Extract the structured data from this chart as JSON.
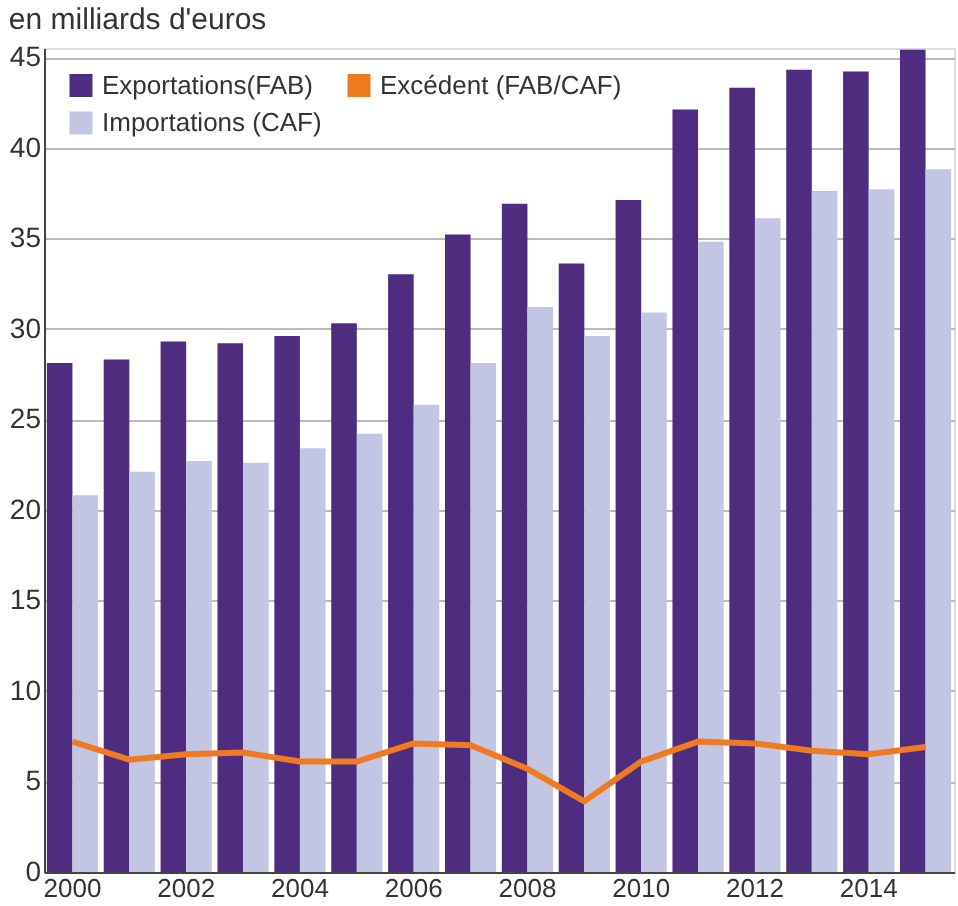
{
  "chart_data": {
    "type": "bar",
    "title": "en milliards d'euros",
    "categories": [
      "2000",
      null,
      "2002",
      null,
      "2004",
      null,
      "2006",
      null,
      "2008",
      null,
      "2010",
      null,
      "2012",
      null,
      "2014",
      null
    ],
    "series": [
      {
        "name": "Exportations(FAB)",
        "color": "#4e2d80",
        "values": [
          28.1,
          28.3,
          29.3,
          29.2,
          29.6,
          30.3,
          33.0,
          35.2,
          36.9,
          33.6,
          37.1,
          42.1,
          43.3,
          44.3,
          44.2,
          45.4
        ]
      },
      {
        "name": "Importations (CAF)",
        "color": "#c3c6e2",
        "values": [
          20.8,
          22.1,
          22.7,
          22.6,
          23.4,
          24.2,
          25.8,
          28.1,
          31.2,
          29.6,
          30.9,
          34.8,
          36.1,
          37.6,
          37.7,
          38.8
        ]
      },
      {
        "name": "Excédent (FAB/CAF)",
        "color": "#f07a22",
        "type": "line",
        "values": [
          7.2,
          6.2,
          6.5,
          6.6,
          6.1,
          6.1,
          7.1,
          7.0,
          5.7,
          3.9,
          6.1,
          7.2,
          7.1,
          6.7,
          6.5,
          6.9
        ]
      }
    ],
    "ylim": [
      0,
      45.5
    ],
    "yticks": [
      0,
      5,
      10,
      15,
      20,
      25,
      30,
      35,
      40,
      45
    ],
    "grid": "y",
    "legend": "top left"
  }
}
